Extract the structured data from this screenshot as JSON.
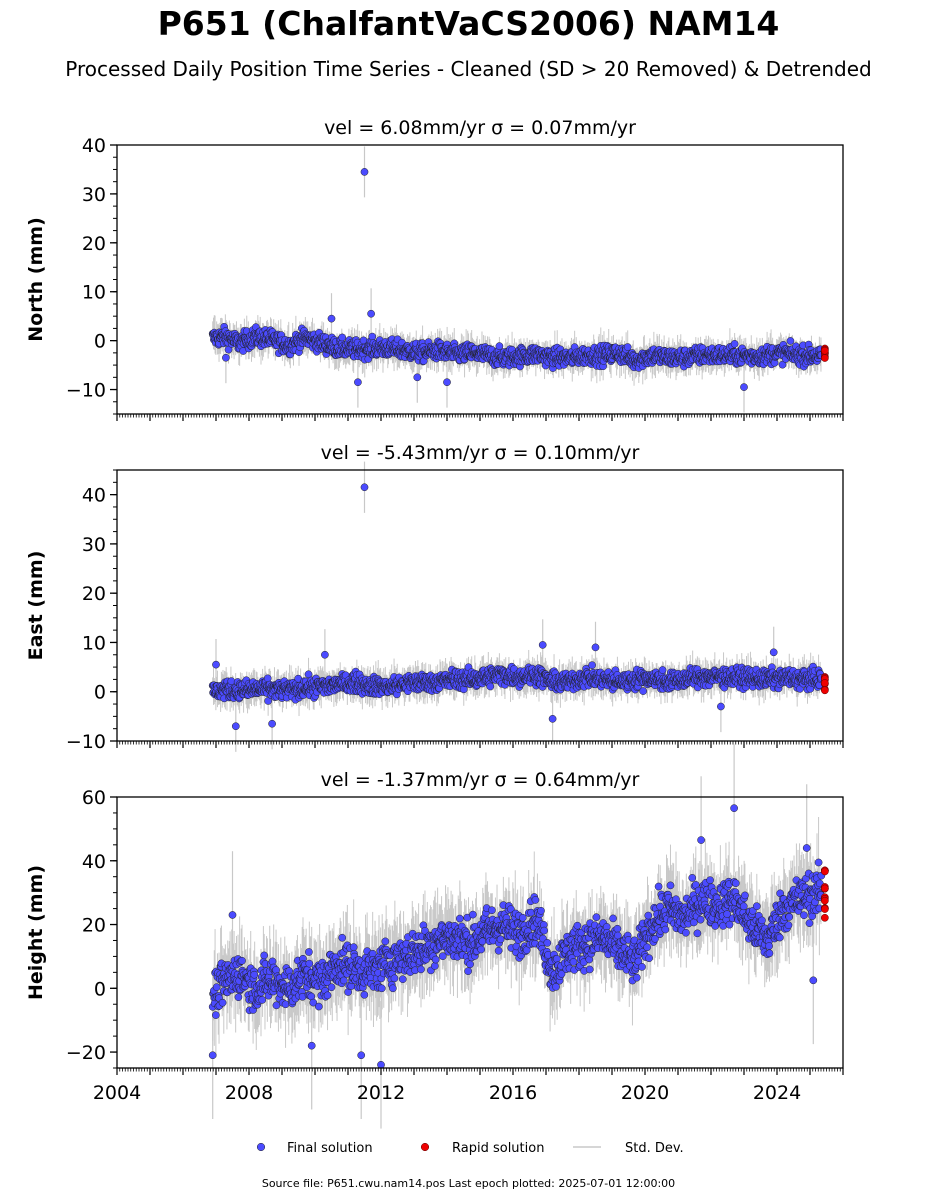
{
  "title": "P651 (ChalfantVaCS2006) NAM14",
  "subtitle": "Processed Daily Position Time Series - Cleaned (SD > 20 Removed) & Detrended",
  "footer": "Source file: P651.cwu.nam14.pos  Last epoch plotted: 2025-07-01 12:00:00",
  "legend": [
    {
      "label": "Final solution",
      "kind": "final-dot"
    },
    {
      "label": "Rapid solution",
      "kind": "rapid-dot"
    },
    {
      "label": "Std. Dev.",
      "kind": "std-line"
    }
  ],
  "colors": {
    "final": "#4b4bff",
    "rapid": "#ee0000",
    "std": "#c8c8c8",
    "edge": "#222222"
  },
  "chart_data": [
    {
      "type": "scatter",
      "title": "vel = 6.08mm/yr   σ = 0.07mm/yr",
      "ylabel": "North (mm)",
      "xlim": [
        2004,
        2026
      ],
      "ylim": [
        -15,
        40
      ],
      "yticks": [
        -10,
        0,
        10,
        20,
        30,
        40
      ],
      "series": [
        {
          "name": "Final solution",
          "x": [
            2006.9,
            2007.3,
            2007.7,
            2008.2,
            2008.7,
            2009.2,
            2009.7,
            2010.2,
            2010.7,
            2011.2,
            2011.7,
            2012.2,
            2012.7,
            2013.2,
            2013.7,
            2014.2,
            2014.7,
            2015.2,
            2015.7,
            2016.2,
            2016.7,
            2017.2,
            2017.7,
            2018.2,
            2018.7,
            2019.2,
            2019.7,
            2020.2,
            2020.7,
            2021.2,
            2021.7,
            2022.2,
            2022.7,
            2023.2,
            2023.7,
            2024.2,
            2024.7,
            2025.2
          ],
          "y": [
            0.5,
            0.8,
            -0.5,
            0.8,
            0.2,
            -1.0,
            0.6,
            -0.5,
            -1.5,
            -1.8,
            -1.5,
            -1.5,
            -2.0,
            -2.5,
            -2.0,
            -2.8,
            -2.5,
            -3.0,
            -3.5,
            -3.2,
            -2.8,
            -3.5,
            -3.5,
            -3.0,
            -3.0,
            -2.5,
            -4.0,
            -3.0,
            -3.5,
            -3.5,
            -3.0,
            -3.0,
            -3.0,
            -3.2,
            -3.0,
            -2.5,
            -3.0,
            -3.0
          ]
        },
        {
          "name": "Rapid solution",
          "x": [
            2025.45
          ],
          "y": [
            -3.0
          ]
        }
      ],
      "outliers": [
        {
          "x": 2011.5,
          "y": 34.5
        },
        {
          "x": 2011.7,
          "y": 5.5
        },
        {
          "x": 2011.3,
          "y": -8.5
        },
        {
          "x": 2014.0,
          "y": -8.5
        },
        {
          "x": 2013.1,
          "y": -7.5
        },
        {
          "x": 2010.5,
          "y": 4.5
        },
        {
          "x": 2007.3,
          "y": -3.5
        },
        {
          "x": 2023.0,
          "y": -9.5
        }
      ]
    },
    {
      "type": "scatter",
      "title": "vel = -5.43mm/yr   σ = 0.10mm/yr",
      "ylabel": "East (mm)",
      "xlim": [
        2004,
        2026
      ],
      "ylim": [
        -10,
        45
      ],
      "yticks": [
        -10,
        0,
        10,
        20,
        30,
        40
      ],
      "series": [
        {
          "name": "Final solution",
          "x": [
            2006.9,
            2007.3,
            2007.7,
            2008.2,
            2008.7,
            2009.2,
            2009.7,
            2010.2,
            2010.7,
            2011.2,
            2011.7,
            2012.2,
            2012.7,
            2013.2,
            2013.7,
            2014.2,
            2014.7,
            2015.2,
            2015.7,
            2016.2,
            2016.7,
            2017.2,
            2017.7,
            2018.2,
            2018.7,
            2019.2,
            2019.7,
            2020.2,
            2020.7,
            2021.2,
            2021.7,
            2022.2,
            2022.7,
            2023.2,
            2023.7,
            2024.2,
            2024.7,
            2025.2
          ],
          "y": [
            0.0,
            0.5,
            0.2,
            0.5,
            0.5,
            0.3,
            0.8,
            1.0,
            1.5,
            2.0,
            1.2,
            1.0,
            1.5,
            2.0,
            2.0,
            2.5,
            2.5,
            3.0,
            3.5,
            3.0,
            3.5,
            2.0,
            2.0,
            3.0,
            2.5,
            2.0,
            2.5,
            2.8,
            2.0,
            2.5,
            3.0,
            3.0,
            3.0,
            2.8,
            2.5,
            2.8,
            2.5,
            2.5
          ]
        },
        {
          "name": "Rapid solution",
          "x": [
            2025.45
          ],
          "y": [
            1.5
          ]
        }
      ],
      "outliers": [
        {
          "x": 2011.5,
          "y": 41.5
        },
        {
          "x": 2010.3,
          "y": 7.5
        },
        {
          "x": 2016.9,
          "y": 9.5
        },
        {
          "x": 2017.2,
          "y": -5.5
        },
        {
          "x": 2018.5,
          "y": 9.0
        },
        {
          "x": 2007.6,
          "y": -7.0
        },
        {
          "x": 2008.7,
          "y": -6.5
        },
        {
          "x": 2022.3,
          "y": -3.0
        },
        {
          "x": 2023.9,
          "y": 8.0
        },
        {
          "x": 2007.0,
          "y": 5.5
        }
      ]
    },
    {
      "type": "scatter",
      "title": "vel = -1.37mm/yr   σ = 0.64mm/yr",
      "ylabel": "Height (mm)",
      "xlim": [
        2004,
        2026
      ],
      "ylim": [
        -25,
        60
      ],
      "yticks": [
        -20,
        0,
        20,
        40,
        60
      ],
      "xticks": [
        2004,
        2008,
        2012,
        2016,
        2020,
        2024
      ],
      "series": [
        {
          "name": "Final solution",
          "x": [
            2006.9,
            2007.3,
            2007.7,
            2008.2,
            2008.7,
            2009.2,
            2009.7,
            2010.2,
            2010.7,
            2011.2,
            2011.7,
            2012.2,
            2012.7,
            2013.2,
            2013.7,
            2014.2,
            2014.7,
            2015.2,
            2015.7,
            2016.2,
            2016.7,
            2017.2,
            2017.7,
            2018.2,
            2018.7,
            2019.2,
            2019.7,
            2020.2,
            2020.7,
            2021.2,
            2021.7,
            2022.2,
            2022.7,
            2023.2,
            2023.7,
            2024.2,
            2024.7,
            2025.2
          ],
          "y": [
            -2,
            2,
            5,
            0,
            3,
            0,
            4,
            2,
            8,
            6,
            5,
            8,
            10,
            12,
            15,
            16,
            14,
            18,
            20,
            17,
            22,
            5,
            12,
            14,
            16,
            12,
            8,
            20,
            25,
            22,
            28,
            26,
            28,
            20,
            15,
            25,
            28,
            30
          ]
        },
        {
          "name": "Rapid solution",
          "x": [
            2025.45
          ],
          "y": [
            30
          ]
        }
      ],
      "outliers": [
        {
          "x": 2006.9,
          "y": -21
        },
        {
          "x": 2012.0,
          "y": -24
        },
        {
          "x": 2011.4,
          "y": -21
        },
        {
          "x": 2022.7,
          "y": 56.5
        },
        {
          "x": 2021.7,
          "y": 46.5
        },
        {
          "x": 2024.9,
          "y": 44
        },
        {
          "x": 2007.5,
          "y": 23
        },
        {
          "x": 2009.9,
          "y": -18
        },
        {
          "x": 2025.1,
          "y": 2.5
        }
      ]
    }
  ]
}
